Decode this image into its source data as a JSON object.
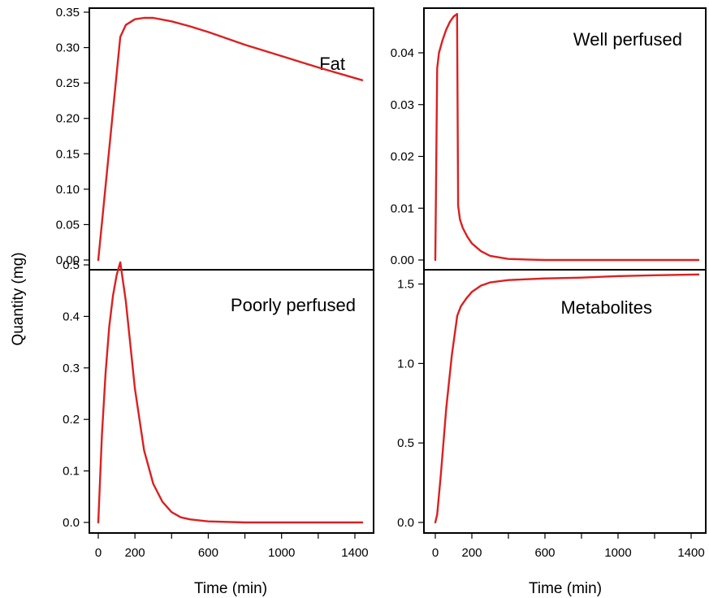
{
  "chart_data": {
    "type": "line",
    "layout": "2x2 panels sharing x axis per column",
    "ylabel": "Quantity (mg)",
    "xlabel": "Time (min)",
    "line_color": "#dc2020",
    "panels": [
      {
        "label": "Fat",
        "xlim": [
          0,
          1440
        ],
        "ylim": [
          0,
          0.35
        ],
        "yticks": [
          "0.00",
          "0.05",
          "0.10",
          "0.15",
          "0.20",
          "0.25",
          "0.30",
          "0.35"
        ],
        "xticks": [],
        "series": [
          {
            "x": [
              0,
              120,
              150,
              200,
              250,
              300,
              400,
              500,
              600,
              800,
              1000,
              1200,
              1440
            ],
            "y": [
              0,
              0.315,
              0.332,
              0.34,
              0.342,
              0.342,
              0.337,
              0.33,
              0.322,
              0.304,
              0.288,
              0.272,
              0.254
            ]
          }
        ]
      },
      {
        "label": "Well perfused",
        "xlim": [
          0,
          1440
        ],
        "ylim": [
          0,
          0.048
        ],
        "yticks": [
          "0.00",
          "0.01",
          "0.02",
          "0.03",
          "0.04"
        ],
        "xticks": [],
        "series": [
          {
            "x": [
              0,
              10,
              20,
              40,
              60,
              80,
              100,
              119,
              125,
              135,
              150,
              175,
              200,
              250,
              300,
              400,
              500,
              600,
              800,
              1000,
              1200,
              1440
            ],
            "y": [
              0,
              0.037,
              0.04,
              0.0425,
              0.0445,
              0.046,
              0.047,
              0.0475,
              0.0105,
              0.0078,
              0.0062,
              0.0045,
              0.0032,
              0.0017,
              0.0008,
              0.0002,
              0.0001,
              0.0,
              0.0,
              0.0,
              0.0,
              0.0
            ]
          }
        ]
      },
      {
        "label": "Poorly perfused",
        "xlim": [
          0,
          1440
        ],
        "ylim": [
          0,
          0.5
        ],
        "yticks": [
          "0.0",
          "0.1",
          "0.2",
          "0.3",
          "0.4",
          "0.5"
        ],
        "xticks": [
          "0",
          "200",
          "600",
          "1000",
          "1400"
        ],
        "series": [
          {
            "x": [
              0,
              20,
              40,
              60,
              80,
              100,
              120,
              150,
              200,
              250,
              300,
              350,
              400,
              450,
              500,
              600,
              800,
              1000,
              1200,
              1440
            ],
            "y": [
              0,
              0.17,
              0.29,
              0.38,
              0.44,
              0.48,
              0.505,
              0.43,
              0.26,
              0.14,
              0.075,
              0.04,
              0.02,
              0.01,
              0.006,
              0.002,
              0.0,
              0.0,
              0.0,
              0.0
            ]
          }
        ]
      },
      {
        "label": "Metabolites",
        "xlim": [
          0,
          1440
        ],
        "ylim": [
          0,
          1.6
        ],
        "yticks": [
          "0.0",
          "0.5",
          "1.0",
          "1.5"
        ],
        "xticks": [
          "0",
          "200",
          "600",
          "1000",
          "1400"
        ],
        "series": [
          {
            "x": [
              0,
              10,
              30,
              60,
              90,
              120,
              140,
              170,
              200,
              250,
              300,
              400,
              500,
              600,
              800,
              1000,
              1200,
              1440
            ],
            "y": [
              0,
              0.05,
              0.3,
              0.72,
              1.05,
              1.3,
              1.36,
              1.41,
              1.45,
              1.49,
              1.51,
              1.525,
              1.53,
              1.535,
              1.54,
              1.55,
              1.555,
              1.56
            ]
          }
        ]
      }
    ]
  }
}
